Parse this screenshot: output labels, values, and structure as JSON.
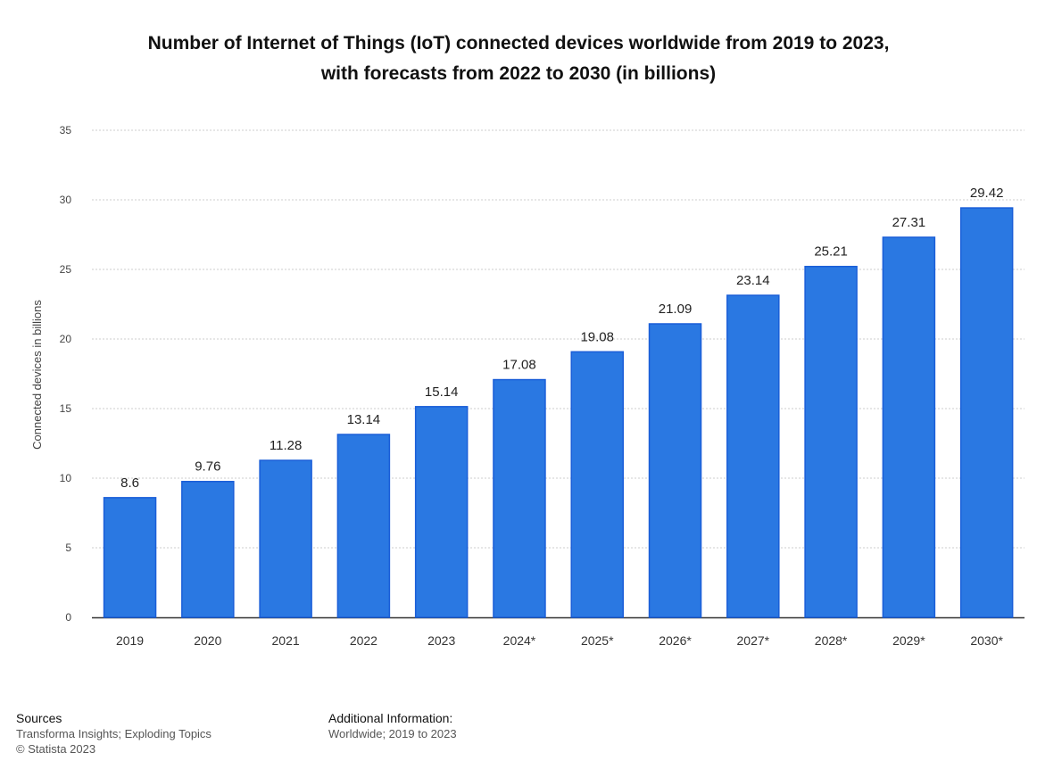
{
  "chart_data": {
    "type": "bar",
    "title_line1": "Number of Internet of Things (IoT) connected devices worldwide from 2019 to 2023,",
    "title_line2": "with forecasts from 2022 to 2030 (in billions)",
    "ylabel": "Connected devices in billions",
    "xlabel": "",
    "ylim": [
      0,
      35
    ],
    "yticks": [
      0,
      5,
      10,
      15,
      20,
      25,
      30,
      35
    ],
    "grid": true,
    "categories": [
      "2019",
      "2020",
      "2021",
      "2022",
      "2023",
      "2024*",
      "2025*",
      "2026*",
      "2027*",
      "2028*",
      "2029*",
      "2030*"
    ],
    "values": [
      8.6,
      9.76,
      11.28,
      13.14,
      15.14,
      17.08,
      19.08,
      21.09,
      23.14,
      25.21,
      27.31,
      29.42
    ],
    "data_labels": [
      "8.6",
      "9.76",
      "11.28",
      "13.14",
      "15.14",
      "17.08",
      "19.08",
      "21.09",
      "23.14",
      "25.21",
      "27.31",
      "29.42"
    ],
    "colors": {
      "bar": "#2a78e2",
      "bar_border": "#1a5ed8",
      "grid": "#cccccc",
      "axis": "#333333"
    }
  },
  "footer": {
    "sources_heading": "Sources",
    "sources_text": "Transforma Insights; Exploding Topics",
    "copyright": "© Statista 2023",
    "additional_heading": "Additional Information:",
    "additional_text": "Worldwide; 2019 to 2023"
  }
}
